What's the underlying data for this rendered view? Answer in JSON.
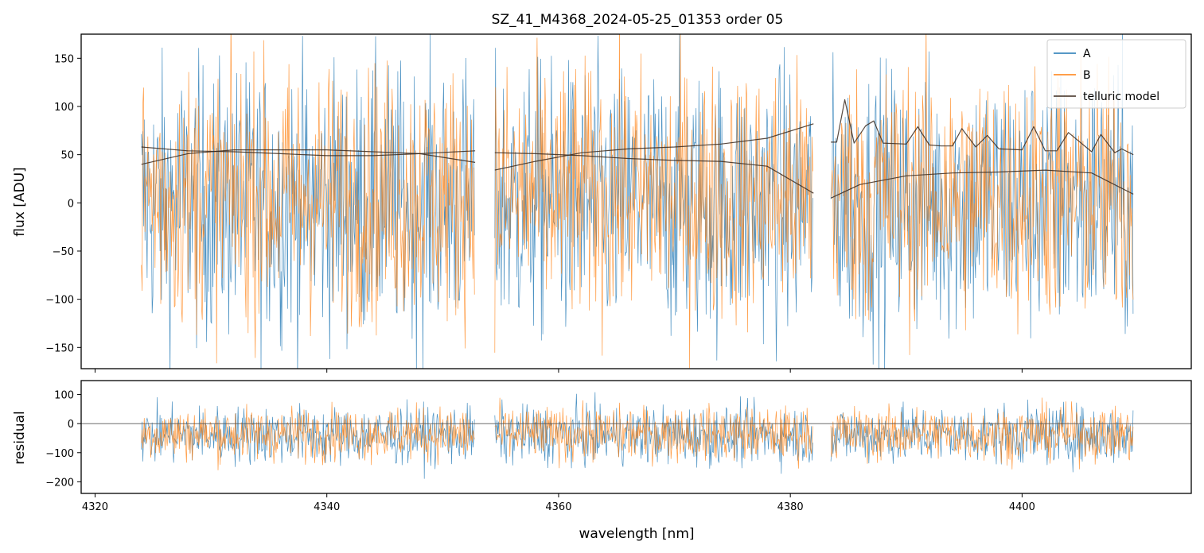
{
  "figure": {
    "title": "SZ_41_M4368_2024-05-25_01353  order 05",
    "xlabel": "wavelength [nm]"
  },
  "colors": {
    "A": "#1f77b4",
    "B": "#ff7f0e",
    "telluric": "#3b2a1f",
    "zero_line": "#555555",
    "axes": "#000000"
  },
  "chart_data": [
    {
      "name": "flux panel",
      "type": "line",
      "ylabel": "flux [ADU]",
      "xlim": [
        4318.8,
        4414.6
      ],
      "ylim": [
        -172,
        175
      ],
      "xticks": [
        4320,
        4340,
        4360,
        4380,
        4400
      ],
      "yticks": [
        -150,
        -100,
        -50,
        0,
        50,
        100,
        150
      ],
      "x_tick_labels_shown": false,
      "legend": {
        "placement": "top-right",
        "entries": [
          "A",
          "B",
          "telluric model"
        ]
      },
      "segments_nm": [
        [
          4324.0,
          4352.8
        ],
        [
          4354.5,
          4382.0
        ],
        [
          4383.5,
          4409.6
        ]
      ],
      "series": [
        {
          "name": "A",
          "kind": "noisy spectrum",
          "approx_mean": 0,
          "approx_amplitude": 170,
          "color": "#1f77b4"
        },
        {
          "name": "B",
          "kind": "noisy spectrum",
          "approx_mean": 0,
          "approx_amplitude": 160,
          "color": "#ff7f0e"
        },
        {
          "name": "telluric model",
          "kind": "smooth model curves",
          "color": "#3b2a1f",
          "curves": [
            {
              "x": [
                4324,
                4328,
                4332,
                4336,
                4340,
                4344,
                4348,
                4352.8
              ],
              "y": [
                58,
                54,
                53,
                51,
                49,
                49,
                51,
                54
              ]
            },
            {
              "x": [
                4324,
                4328,
                4332,
                4336,
                4340,
                4344,
                4348,
                4352.8
              ],
              "y": [
                40,
                51,
                55,
                55,
                55,
                53,
                51,
                42
              ]
            },
            {
              "x": [
                4354.5,
                4358,
                4362,
                4366,
                4370,
                4374,
                4378,
                4382
              ],
              "y": [
                52,
                51,
                49,
                46,
                44,
                43,
                38,
                10
              ]
            },
            {
              "x": [
                4354.5,
                4358,
                4362,
                4366,
                4370,
                4374,
                4378,
                4382
              ],
              "y": [
                34,
                43,
                52,
                56,
                58,
                61,
                67,
                82
              ]
            },
            {
              "x": [
                4383.5,
                4386,
                4390,
                4394,
                4398,
                4402,
                4406,
                4409.6
              ],
              "y": [
                5,
                19,
                28,
                31,
                32,
                34,
                31,
                9
              ]
            },
            {
              "x": [
                4383.5,
                4384.0,
                4384.7,
                4385.5,
                4386.5,
                4387.2,
                4388,
                4390,
                4391,
                4392,
                4393,
                4394,
                4394.8,
                4396,
                4397,
                4398,
                4400,
                4401,
                4402,
                4403,
                4404,
                4406,
                4406.8,
                4408,
                4408.6,
                4409.6
              ],
              "y": [
                63,
                63,
                107,
                62,
                80,
                85,
                62,
                61,
                79,
                60,
                59,
                59,
                77,
                58,
                70,
                56,
                55,
                79,
                54,
                54,
                73,
                53,
                71,
                52,
                56,
                50
              ]
            }
          ]
        }
      ]
    },
    {
      "name": "residual panel",
      "type": "line",
      "ylabel": "residual",
      "xlim": [
        4318.8,
        4414.6
      ],
      "ylim": [
        -240,
        148
      ],
      "xticks": [
        4320,
        4340,
        4360,
        4380,
        4400
      ],
      "x_tick_labels": [
        "4320",
        "4340",
        "4360",
        "4380",
        "4400"
      ],
      "yticks": [
        -200,
        -100,
        0,
        100
      ],
      "zero_line": 0,
      "series": [
        {
          "name": "A",
          "kind": "noisy residual",
          "approx_mean": -40,
          "approx_amplitude": 120,
          "color": "#1f77b4"
        },
        {
          "name": "B",
          "kind": "noisy residual",
          "approx_mean": -35,
          "approx_amplitude": 110,
          "color": "#ff7f0e"
        }
      ]
    }
  ]
}
